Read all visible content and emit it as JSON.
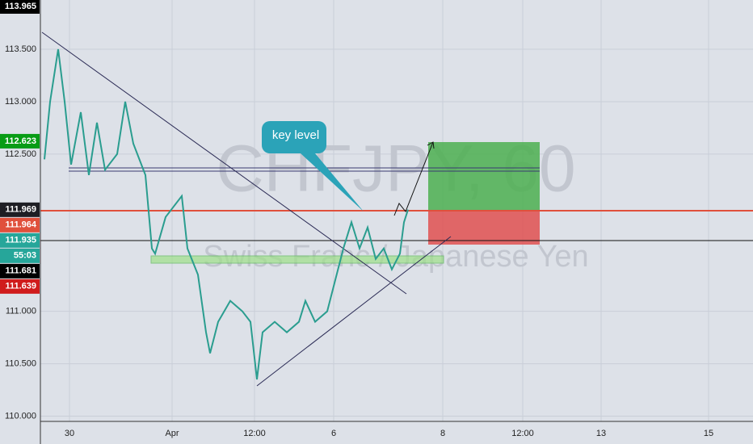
{
  "chart_data": {
    "type": "line",
    "title": "CHFJPY, 60",
    "subtitle": "Swiss Franc / Japanese Yen",
    "annotation": "key level",
    "color": "#2a9d8f",
    "x": [
      5,
      12,
      22,
      30,
      38,
      50,
      60,
      70,
      80,
      95,
      105,
      115,
      130,
      138,
      142,
      155,
      165,
      175,
      182,
      195,
      205,
      210,
      220,
      235,
      250,
      260,
      268,
      275,
      290,
      305,
      320,
      328,
      340,
      355,
      365,
      375,
      385,
      395,
      405,
      415,
      425,
      435,
      445,
      450,
      455
    ],
    "values": [
      112.45,
      113.0,
      113.5,
      113.0,
      112.4,
      112.9,
      112.3,
      112.8,
      112.35,
      112.5,
      113.0,
      112.6,
      112.3,
      111.6,
      111.55,
      111.9,
      112.0,
      112.1,
      111.6,
      111.35,
      110.8,
      110.6,
      110.9,
      111.1,
      111.0,
      110.9,
      110.35,
      110.8,
      110.9,
      110.8,
      110.9,
      111.1,
      110.9,
      111.0,
      111.3,
      111.6,
      111.85,
      111.6,
      111.8,
      111.5,
      111.6,
      111.4,
      111.55,
      111.85,
      111.97
    ],
    "xlim": [
      0,
      882
    ],
    "ylim": [
      109.95,
      113.97
    ],
    "xticks": [
      {
        "value": 36,
        "label": "30"
      },
      {
        "value": 163,
        "label": "Apr"
      },
      {
        "value": 265,
        "label": "12:00"
      },
      {
        "value": 363,
        "label": "6"
      },
      {
        "value": 498,
        "label": "8"
      },
      {
        "value": 597,
        "label": "12:00"
      },
      {
        "value": 694,
        "label": "13"
      },
      {
        "value": 827,
        "label": "15"
      }
    ],
    "yticks": [
      {
        "value": 113.5,
        "label": "113.500"
      },
      {
        "value": 113.0,
        "label": "113.000"
      },
      {
        "value": 112.5,
        "label": "112.500"
      },
      {
        "value": 111.0,
        "label": "111.000"
      },
      {
        "value": 110.5,
        "label": "110.500"
      },
      {
        "value": 110.0,
        "label": "110.000"
      }
    ],
    "grid": true,
    "price_tags": [
      {
        "value": 113.965,
        "color": "#000000"
      },
      {
        "value": 112.623,
        "color": "#089c15"
      },
      {
        "value": 111.969,
        "color": "#1e1e24"
      },
      {
        "value": 111.964,
        "color": "#e0503c"
      },
      {
        "value": 111.935,
        "color": "#26a69a"
      },
      {
        "value": 111.681,
        "color": "#000000"
      },
      {
        "value": 111.639,
        "color": "#d01c1c"
      }
    ],
    "countdown": "55:03"
  }
}
